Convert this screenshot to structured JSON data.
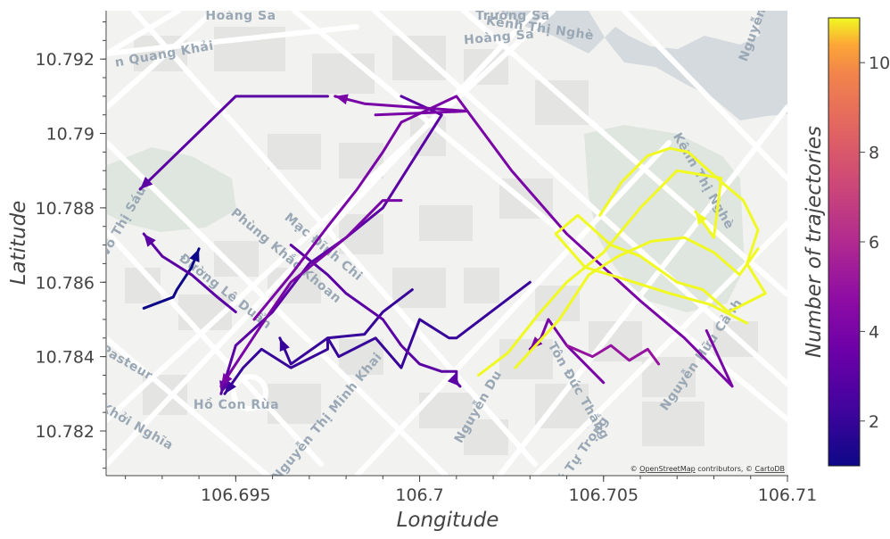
{
  "map": {
    "attribution_prefix": "© ",
    "attribution_osm": "OpenStreetMap",
    "attribution_middle": " contributors, © ",
    "attribution_carto": "CartoDB",
    "place_labels": [
      {
        "text": "Hoàng Sa"
      },
      {
        "text": "Hoàng Sa"
      },
      {
        "text": "Trường Sa"
      },
      {
        "text": "Kênh Thị Nghè"
      },
      {
        "text": "n Quang Khải"
      },
      {
        "text": "Võ Thị Sáu"
      },
      {
        "text": "Phùng Khắc Khoan"
      },
      {
        "text": "Mạc Đĩnh Chi"
      },
      {
        "text": "Đường Lê Duẩn"
      },
      {
        "text": "Pasteur"
      },
      {
        "text": "Hồ Con Rùa"
      },
      {
        "text": "Kỳ Khởi Nghĩa"
      },
      {
        "text": "Nguyễn Thị Minh Khai"
      },
      {
        "text": "Nguyễn Du"
      },
      {
        "text": "Tôn Đức Thắng"
      },
      {
        "text": "Nguyễn Hữu Cảnh"
      },
      {
        "text": "Lý Tự Trọng"
      },
      {
        "text": "Kênh Thị Nghè"
      },
      {
        "text": "Nguyễn"
      }
    ]
  },
  "colorbar": {
    "title": "Number of trajectories",
    "min": 1,
    "max": 11,
    "colorscale": "plasma",
    "ticks": [
      2,
      4,
      6,
      8,
      10
    ]
  },
  "chart_data": {
    "type": "line",
    "xlabel": "Longitude",
    "ylabel": "Latitude",
    "xlim": [
      106.6915,
      106.71
    ],
    "ylim": [
      10.7808,
      10.7933
    ],
    "xticks": [
      106.695,
      106.7,
      106.705,
      106.71
    ],
    "xtick_labels": [
      "106.695",
      "106.7",
      "106.705",
      "106.71"
    ],
    "yticks": [
      10.782,
      10.784,
      10.786,
      10.788,
      10.79,
      10.792
    ],
    "ytick_labels": [
      "10.782",
      "10.784",
      "10.786",
      "10.788",
      "10.79",
      "10.792"
    ],
    "series": [
      {
        "count": 1,
        "arrow": "end",
        "points": [
          [
            106.6925,
            10.7853
          ],
          [
            106.6933,
            10.7856
          ],
          [
            106.6934,
            10.7858
          ],
          [
            106.6938,
            10.7864
          ],
          [
            106.694,
            10.7869
          ]
        ]
      },
      {
        "count": 2,
        "arrow": "end",
        "points": [
          [
            106.6998,
            10.7858
          ],
          [
            106.699,
            10.7852
          ],
          [
            106.6985,
            10.7846
          ],
          [
            106.6975,
            10.7845
          ],
          [
            106.6975,
            10.7842
          ],
          [
            106.6965,
            10.7837
          ],
          [
            106.6957,
            10.7842
          ],
          [
            106.6952,
            10.7837
          ],
          [
            106.6947,
            10.783
          ]
        ]
      },
      {
        "count": 2,
        "arrow": "end",
        "points": [
          [
            106.703,
            10.786
          ],
          [
            106.701,
            10.7845
          ],
          [
            106.7008,
            10.7845
          ],
          [
            106.7,
            10.785
          ],
          [
            106.6995,
            10.7837
          ],
          [
            106.6988,
            10.7845
          ],
          [
            106.6978,
            10.784
          ],
          [
            106.6975,
            10.7845
          ],
          [
            106.6965,
            10.7838
          ],
          [
            106.6962,
            10.7845
          ]
        ]
      },
      {
        "count": 3,
        "arrow": "end",
        "points": [
          [
            106.6965,
            10.787
          ],
          [
            106.6975,
            10.7862
          ],
          [
            106.698,
            10.7857
          ],
          [
            106.699,
            10.785
          ],
          [
            106.6995,
            10.7843
          ],
          [
            106.7,
            10.7838
          ],
          [
            106.7006,
            10.7836
          ],
          [
            106.701,
            10.7836
          ],
          [
            106.701,
            10.7833
          ],
          [
            106.7011,
            10.7832
          ]
        ]
      },
      {
        "count": 3,
        "arrow": "end",
        "points": [
          [
            106.6995,
            10.791
          ],
          [
            106.7006,
            10.7905
          ],
          [
            106.699,
            10.788
          ],
          [
            106.698,
            10.7872
          ],
          [
            106.697,
            10.7865
          ],
          [
            106.696,
            10.7852
          ],
          [
            106.695,
            10.7843
          ],
          [
            106.6946,
            10.783
          ]
        ]
      },
      {
        "count": 3,
        "arrow": "end",
        "points": [
          [
            106.695,
            10.7852
          ],
          [
            106.6945,
            10.7856
          ],
          [
            106.6938,
            10.7862
          ],
          [
            106.693,
            10.7867
          ],
          [
            106.6925,
            10.7873
          ]
        ]
      },
      {
        "count": 3,
        "arrow": "end",
        "points": [
          [
            106.6975,
            10.791
          ],
          [
            106.695,
            10.791
          ],
          [
            106.6924,
            10.7885
          ]
        ]
      },
      {
        "count": 4,
        "arrow": "end",
        "points": [
          [
            106.6955,
            10.785
          ],
          [
            106.6965,
            10.7862
          ],
          [
            106.6975,
            10.7875
          ],
          [
            106.6983,
            10.7885
          ],
          [
            106.699,
            10.7895
          ],
          [
            106.6995,
            10.7903
          ],
          [
            106.701,
            10.791
          ],
          [
            106.7013,
            10.7906
          ],
          [
            106.6985,
            10.7908
          ],
          [
            106.6977,
            10.791
          ]
        ]
      },
      {
        "count": 4,
        "arrow": "end",
        "points": [
          [
            106.6995,
            10.7882
          ],
          [
            106.699,
            10.7882
          ],
          [
            106.698,
            10.7872
          ],
          [
            106.6965,
            10.786
          ],
          [
            106.6958,
            10.785
          ],
          [
            106.6946,
            10.7832
          ]
        ]
      },
      {
        "count": 4,
        "arrow": "end",
        "points": [
          [
            106.705,
            10.7833
          ],
          [
            106.704,
            10.7843
          ],
          [
            106.7035,
            10.785
          ],
          [
            106.7033,
            10.7845
          ],
          [
            106.703,
            10.7842
          ]
        ]
      },
      {
        "count": 4,
        "arrow": "none",
        "points": [
          [
            106.6988,
            10.7905
          ],
          [
            106.7013,
            10.7906
          ],
          [
            106.7025,
            10.789
          ],
          [
            106.704,
            10.7873
          ],
          [
            106.706,
            10.7855
          ],
          [
            106.7072,
            10.7845
          ],
          [
            106.7085,
            10.7832
          ],
          [
            106.7078,
            10.7847
          ]
        ]
      },
      {
        "count": 5,
        "arrow": "none",
        "points": [
          [
            106.704,
            10.7843
          ],
          [
            106.7047,
            10.784
          ],
          [
            106.7052,
            10.7843
          ],
          [
            106.7057,
            10.7839
          ],
          [
            106.7062,
            10.7842
          ],
          [
            106.7065,
            10.7838
          ]
        ]
      },
      {
        "count": 11,
        "arrow": "end",
        "points": [
          [
            106.7016,
            10.7835
          ],
          [
            106.7024,
            10.7841
          ],
          [
            106.7032,
            10.7851
          ],
          [
            106.704,
            10.786
          ],
          [
            106.705,
            10.7868
          ],
          [
            106.706,
            10.788
          ],
          [
            106.707,
            10.789
          ],
          [
            106.7082,
            10.7888
          ],
          [
            106.708,
            10.7872
          ],
          [
            106.7075,
            10.7879
          ]
        ]
      },
      {
        "count": 11,
        "arrow": "none",
        "points": [
          [
            106.7049,
            10.7878
          ],
          [
            106.7055,
            10.7887
          ],
          [
            106.7062,
            10.7894
          ],
          [
            106.7068,
            10.7896
          ],
          [
            106.7073,
            10.7895
          ],
          [
            106.7082,
            10.7887
          ],
          [
            106.7088,
            10.7882
          ],
          [
            106.7092,
            10.7874
          ],
          [
            106.7089,
            10.7865
          ],
          [
            106.7094,
            10.7857
          ],
          [
            106.7084,
            10.7852
          ],
          [
            106.7077,
            10.7858
          ],
          [
            106.707,
            10.786
          ],
          [
            106.706,
            10.7867
          ],
          [
            106.7052,
            10.787
          ],
          [
            106.7043,
            10.7878
          ],
          [
            106.7037,
            10.7873
          ],
          [
            106.7045,
            10.7864
          ],
          [
            106.7055,
            10.7861
          ],
          [
            106.7068,
            10.7857
          ],
          [
            106.7079,
            10.7854
          ],
          [
            106.7089,
            10.7849
          ]
        ]
      },
      {
        "count": 11,
        "arrow": "none",
        "points": [
          [
            106.7026,
            10.7837
          ],
          [
            106.7038,
            10.785
          ],
          [
            106.7046,
            10.7862
          ],
          [
            106.7054,
            10.7867
          ],
          [
            106.7063,
            10.7871
          ],
          [
            106.7072,
            10.7872
          ],
          [
            106.708,
            10.7868
          ],
          [
            106.7087,
            10.7862
          ],
          [
            106.7092,
            10.7869
          ]
        ]
      }
    ]
  }
}
